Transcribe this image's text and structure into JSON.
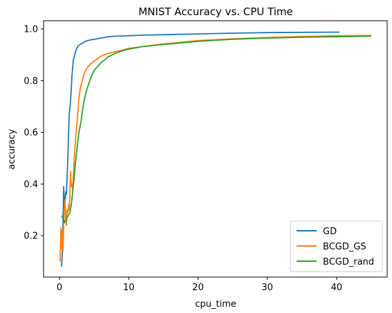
{
  "chart_data": {
    "type": "line",
    "title": "MNIST Accuracy vs. CPU Time",
    "xlabel": "cpu_time",
    "ylabel": "accuracy",
    "xlim": [
      -2.3,
      47.3
    ],
    "ylim": [
      0.04,
      1.032
    ],
    "xticks": [
      0,
      10,
      20,
      30,
      40
    ],
    "yticks": [
      0.2,
      0.4,
      0.6,
      0.8,
      1.0
    ],
    "xtick_labels": [
      "0",
      "10",
      "20",
      "30",
      "40"
    ],
    "ytick_labels": [
      "0.2",
      "0.4",
      "0.6",
      "0.8",
      "1.0"
    ],
    "grid": false,
    "legend_position": "lower-right",
    "series": [
      {
        "name": "GD",
        "color": "#1f77b4",
        "x": [
          0.3,
          0.45,
          0.6,
          0.75,
          0.9,
          1.0,
          1.2,
          1.4,
          1.6,
          1.8,
          2.0,
          2.2,
          2.4,
          2.7,
          3.0,
          3.3,
          3.6,
          4.0,
          4.5,
          5.0,
          6.0,
          7.0,
          8.0,
          9.0,
          10.0,
          12.0,
          15.0,
          20.0,
          25.0,
          30.0,
          35.0,
          40.4
        ],
        "y": [
          0.08,
          0.16,
          0.39,
          0.3,
          0.37,
          0.36,
          0.5,
          0.67,
          0.72,
          0.82,
          0.88,
          0.9,
          0.92,
          0.935,
          0.94,
          0.945,
          0.95,
          0.955,
          0.958,
          0.96,
          0.965,
          0.97,
          0.972,
          0.973,
          0.974,
          0.976,
          0.978,
          0.981,
          0.984,
          0.986,
          0.987,
          0.988
        ]
      },
      {
        "name": "BCGD_GS",
        "color": "#ff7f0e",
        "x": [
          0.1,
          0.2,
          0.3,
          0.4,
          0.5,
          0.6,
          0.7,
          0.8,
          0.9,
          1.0,
          1.1,
          1.2,
          1.3,
          1.4,
          1.5,
          1.6,
          1.7,
          1.8,
          1.9,
          2.0,
          2.2,
          2.4,
          2.6,
          2.8,
          3.0,
          3.3,
          3.6,
          4.0,
          4.5,
          5.0,
          5.5,
          6.0,
          7.0,
          8.0,
          9.0,
          10.0,
          12.0,
          15.0,
          20.0,
          25.0,
          30.0,
          35.0,
          40.0,
          45.0
        ],
        "y": [
          0.1,
          0.23,
          0.15,
          0.22,
          0.14,
          0.24,
          0.3,
          0.34,
          0.26,
          0.24,
          0.3,
          0.29,
          0.32,
          0.3,
          0.36,
          0.45,
          0.39,
          0.4,
          0.38,
          0.43,
          0.53,
          0.6,
          0.66,
          0.73,
          0.77,
          0.8,
          0.83,
          0.85,
          0.865,
          0.875,
          0.885,
          0.895,
          0.905,
          0.912,
          0.918,
          0.925,
          0.932,
          0.942,
          0.955,
          0.962,
          0.967,
          0.971,
          0.974,
          0.975
        ]
      },
      {
        "name": "BCGD_rand",
        "color": "#2ca02c",
        "x": [
          0.3,
          0.5,
          0.7,
          0.9,
          1.1,
          1.3,
          1.5,
          1.7,
          1.9,
          2.1,
          2.3,
          2.5,
          2.8,
          3.1,
          3.4,
          3.7,
          4.0,
          4.5,
          5.0,
          5.5,
          6.0,
          6.5,
          7.0,
          8.0,
          9.0,
          10.0,
          12.0,
          15.0,
          20.0,
          25.0,
          30.0,
          35.0,
          40.0,
          45.0
        ],
        "y": [
          0.27,
          0.28,
          0.25,
          0.26,
          0.27,
          0.28,
          0.29,
          0.32,
          0.37,
          0.42,
          0.48,
          0.53,
          0.6,
          0.64,
          0.7,
          0.74,
          0.77,
          0.81,
          0.84,
          0.855,
          0.87,
          0.88,
          0.892,
          0.905,
          0.915,
          0.922,
          0.932,
          0.94,
          0.952,
          0.96,
          0.965,
          0.968,
          0.97,
          0.972
        ]
      }
    ]
  }
}
